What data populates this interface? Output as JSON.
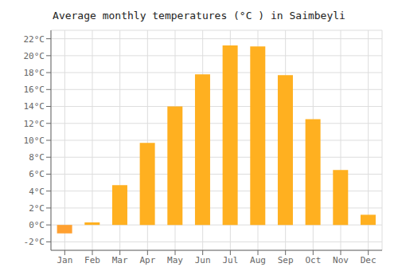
{
  "chart_data": {
    "type": "bar",
    "title": "Average monthly temperatures (°C ) in Saimbeyli",
    "categories": [
      "Jan",
      "Feb",
      "Mar",
      "Apr",
      "May",
      "Jun",
      "Jul",
      "Aug",
      "Sep",
      "Oct",
      "Nov",
      "Dec"
    ],
    "values": [
      -1.0,
      0.3,
      4.7,
      9.7,
      14.0,
      17.8,
      21.2,
      21.1,
      17.7,
      12.5,
      6.5,
      1.2
    ],
    "colors": [
      "#FFA030",
      "#FFB020",
      "#FFB020",
      "#FFB020",
      "#FFB020",
      "#FFB020",
      "#FFB020",
      "#FFB020",
      "#FFB020",
      "#FFB020",
      "#FFB020",
      "#FFB020"
    ],
    "ylim": [
      -3,
      23
    ],
    "yticks": [
      {
        "value": -2,
        "label": "-2°C"
      },
      {
        "value": 0,
        "label": "0°C"
      },
      {
        "value": 2,
        "label": "2°C"
      },
      {
        "value": 4,
        "label": "4°C"
      },
      {
        "value": 6,
        "label": "6°C"
      },
      {
        "value": 8,
        "label": "8°C"
      },
      {
        "value": 10,
        "label": "10°C"
      },
      {
        "value": 12,
        "label": "12°C"
      },
      {
        "value": 14,
        "label": "14°C"
      },
      {
        "value": 16,
        "label": "16°C"
      },
      {
        "value": 18,
        "label": "18°C"
      },
      {
        "value": 20,
        "label": "20°C"
      },
      {
        "value": 22,
        "label": "22°C"
      }
    ],
    "grid": true
  }
}
